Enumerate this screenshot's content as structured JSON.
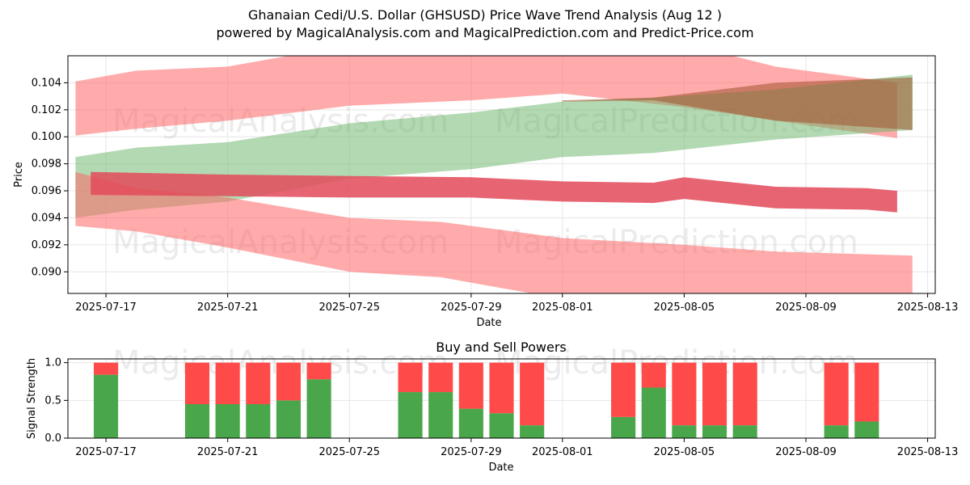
{
  "title": "Ghanaian Cedi/U.S. Dollar (GHSUSD) Price Wave Trend Analysis (Aug 12 )",
  "subtitle": "powered by MagicalAnalysis.com and MagicalPrediction.com and Predict-Price.com",
  "watermarks": [
    "MagicalAnalysis.com",
    "MagicalPrediction.com"
  ],
  "colors": {
    "red_band": "#ff6666",
    "green_band": "#66b366",
    "brown_band": "#a0522d",
    "center_line": "#e34a5a",
    "buy": "#4aa64a",
    "sell": "#ff4a4a",
    "grid": "#e6e6e6"
  },
  "chart_data": [
    {
      "type": "area",
      "title": "",
      "xlabel": "Date",
      "ylabel": "Price",
      "xlim": [
        "2025-07-15T18:00",
        "2025-08-13T06:00"
      ],
      "ylim": [
        0.0884,
        0.106
      ],
      "grid": true,
      "x_ticks": [
        "2025-07-17",
        "2025-07-21",
        "2025-07-25",
        "2025-07-29",
        "2025-08-01",
        "2025-08-05",
        "2025-08-09",
        "2025-08-13"
      ],
      "y_ticks": [
        "0.090",
        "0.092",
        "0.094",
        "0.096",
        "0.098",
        "0.100",
        "0.102",
        "0.104"
      ],
      "series": [
        {
          "color": "red",
          "points": [
            {
              "x": "2025-07-16",
              "lo": 0.1001,
              "hi": 0.1041
            },
            {
              "x": "2025-07-18",
              "lo": 0.1006,
              "hi": 0.1049
            },
            {
              "x": "2025-07-21",
              "lo": 0.1012,
              "hi": 0.1052
            },
            {
              "x": "2025-07-25",
              "lo": 0.1023,
              "hi": 0.1068
            },
            {
              "x": "2025-07-29",
              "lo": 0.1027,
              "hi": 0.1072
            },
            {
              "x": "2025-08-01",
              "lo": 0.1032,
              "hi": 0.1073
            },
            {
              "x": "2025-08-05",
              "lo": 0.1022,
              "hi": 0.1069
            },
            {
              "x": "2025-08-08",
              "lo": 0.1012,
              "hi": 0.1052
            },
            {
              "x": "2025-08-12",
              "lo": 0.0999,
              "hi": 0.104
            }
          ]
        },
        {
          "color": "green",
          "points": [
            {
              "x": "2025-07-16",
              "lo": 0.094,
              "hi": 0.0985
            },
            {
              "x": "2025-07-18",
              "lo": 0.0946,
              "hi": 0.0992
            },
            {
              "x": "2025-07-21",
              "lo": 0.0952,
              "hi": 0.0996
            },
            {
              "x": "2025-07-25",
              "lo": 0.0969,
              "hi": 0.101
            },
            {
              "x": "2025-07-29",
              "lo": 0.0976,
              "hi": 0.1018
            },
            {
              "x": "2025-08-01",
              "lo": 0.0985,
              "hi": 0.1026
            },
            {
              "x": "2025-08-04",
              "lo": 0.0988,
              "hi": 0.1029
            },
            {
              "x": "2025-08-08",
              "lo": 0.0998,
              "hi": 0.1035
            },
            {
              "x": "2025-08-12.5",
              "lo": 0.1005,
              "hi": 0.1046
            }
          ]
        },
        {
          "color": "brown",
          "points": [
            {
              "x": "2025-08-01",
              "lo": 0.1026,
              "hi": 0.1027
            },
            {
              "x": "2025-08-04",
              "lo": 0.1027,
              "hi": 0.1029
            },
            {
              "x": "2025-08-08",
              "lo": 0.1012,
              "hi": 0.104
            },
            {
              "x": "2025-08-12.5",
              "lo": 0.1005,
              "hi": 0.1044
            }
          ]
        },
        {
          "color": "red",
          "points": [
            {
              "x": "2025-07-16",
              "lo": 0.0934,
              "hi": 0.0974
            },
            {
              "x": "2025-07-18",
              "lo": 0.093,
              "hi": 0.0962
            },
            {
              "x": "2025-07-21",
              "lo": 0.0918,
              "hi": 0.0955
            },
            {
              "x": "2025-07-25",
              "lo": 0.09,
              "hi": 0.094
            },
            {
              "x": "2025-07-28",
              "lo": 0.0896,
              "hi": 0.0937
            },
            {
              "x": "2025-08-01",
              "lo": 0.088,
              "hi": 0.0925
            },
            {
              "x": "2025-08-05",
              "lo": 0.0876,
              "hi": 0.092
            },
            {
              "x": "2025-08-08",
              "lo": 0.087,
              "hi": 0.0915
            },
            {
              "x": "2025-08-12.5",
              "lo": 0.0868,
              "hi": 0.0912
            }
          ]
        },
        {
          "color": "center",
          "points": [
            {
              "x": "2025-07-16.5",
              "lo": 0.0957,
              "hi": 0.0974
            },
            {
              "x": "2025-07-21",
              "lo": 0.0956,
              "hi": 0.0972
            },
            {
              "x": "2025-07-25",
              "lo": 0.0955,
              "hi": 0.0971
            },
            {
              "x": "2025-07-29",
              "lo": 0.0955,
              "hi": 0.097
            },
            {
              "x": "2025-08-01",
              "lo": 0.0952,
              "hi": 0.0967
            },
            {
              "x": "2025-08-04",
              "lo": 0.0951,
              "hi": 0.0966
            },
            {
              "x": "2025-08-05",
              "lo": 0.0954,
              "hi": 0.097
            },
            {
              "x": "2025-08-08",
              "lo": 0.0947,
              "hi": 0.0963
            },
            {
              "x": "2025-08-11",
              "lo": 0.0946,
              "hi": 0.0962
            },
            {
              "x": "2025-08-12",
              "lo": 0.0944,
              "hi": 0.096
            }
          ]
        }
      ]
    },
    {
      "type": "bar",
      "title": "Buy and Sell Powers",
      "xlabel": "Date",
      "ylabel": "Signal Strength",
      "ylim": [
        0,
        1.05
      ],
      "grid": true,
      "x_ticks": [
        "2025-07-17",
        "2025-07-21",
        "2025-07-25",
        "2025-07-29",
        "2025-08-01",
        "2025-08-05",
        "2025-08-09",
        "2025-08-13"
      ],
      "y_ticks": [
        "0.0",
        "0.5",
        "1.0"
      ],
      "categories": [
        "2025-07-17",
        "2025-07-20",
        "2025-07-21",
        "2025-07-22",
        "2025-07-23",
        "2025-07-24",
        "2025-07-27",
        "2025-07-28",
        "2025-07-29",
        "2025-07-30",
        "2025-07-31",
        "2025-08-03",
        "2025-08-04",
        "2025-08-05",
        "2025-08-06",
        "2025-08-07",
        "2025-08-10",
        "2025-08-11"
      ],
      "buy": [
        0.84,
        0.45,
        0.45,
        0.45,
        0.5,
        0.78,
        0.61,
        0.61,
        0.39,
        0.33,
        0.17,
        0.28,
        0.67,
        0.17,
        0.17,
        0.17,
        0.17,
        0.22
      ],
      "sell": [
        0.16,
        0.55,
        0.55,
        0.55,
        0.5,
        0.22,
        0.39,
        0.39,
        0.61,
        0.67,
        0.83,
        0.72,
        0.33,
        0.83,
        0.83,
        0.83,
        0.83,
        0.78
      ]
    }
  ]
}
